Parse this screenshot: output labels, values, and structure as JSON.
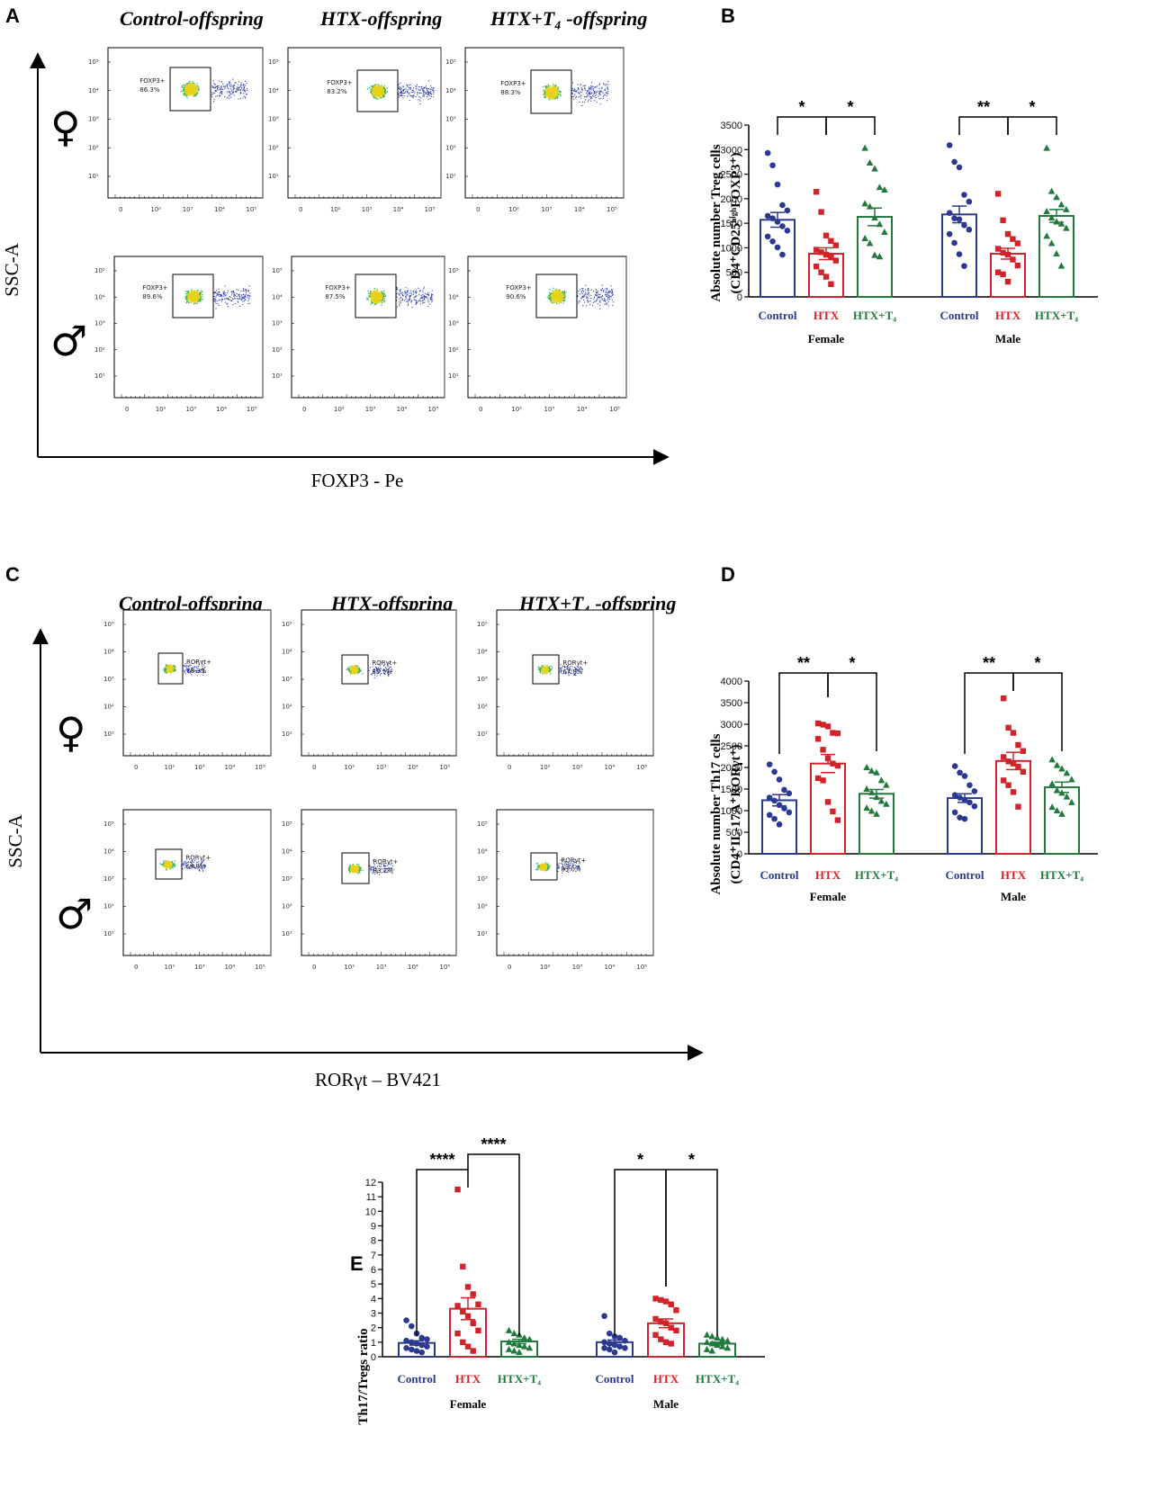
{
  "panels": {
    "A": {
      "label": "A",
      "columns": [
        "Control-offspring",
        "HTX-offspring",
        "HTX+T₄ -offspring"
      ],
      "y_axis": "SSC-A",
      "x_axis": "FOXP3 - Pe",
      "rows": [
        {
          "sex_icon": "female-symbol",
          "symbol": "♀",
          "gates": [
            {
              "name": "FOXP3+",
              "pct": "86.3%"
            },
            {
              "name": "FOXP3+",
              "pct": "83.2%"
            },
            {
              "name": "FOXP3+",
              "pct": "88.3%"
            }
          ]
        },
        {
          "sex_icon": "male-symbol",
          "symbol": "♂",
          "gates": [
            {
              "name": "FOXP3+",
              "pct": "89.6%"
            },
            {
              "name": "FOXP3+",
              "pct": "87.5%"
            },
            {
              "name": "FOXP3+",
              "pct": "90.6%"
            }
          ]
        }
      ]
    },
    "C": {
      "label": "C",
      "columns": [
        "Control-offspring",
        "HTX-offspring",
        "HTX+T₄ -offspring"
      ],
      "y_axis": "SSC-A",
      "x_axis": "RORγt – BV421",
      "rows": [
        {
          "sex_icon": "female-symbol",
          "symbol": "♀",
          "gates": [
            {
              "name": "RORγt+",
              "pct": "78.3%"
            },
            {
              "name": "RORγt+",
              "pct": "83.7%"
            },
            {
              "name": "RORγt+",
              "pct": "67.8%"
            }
          ]
        },
        {
          "sex_icon": "male-symbol",
          "symbol": "♂",
          "gates": [
            {
              "name": "RORγt+",
              "pct": "64.9%"
            },
            {
              "name": "RORγt+",
              "pct": "83.2%"
            },
            {
              "name": "RORγt+",
              "pct": "85.0%"
            }
          ]
        }
      ]
    },
    "flow_ticks": {
      "y": [
        "10⁵",
        "10⁴",
        "10³",
        "10²",
        "10¹"
      ],
      "x": [
        "0",
        "10²",
        "10³",
        "10⁴",
        "10⁵"
      ]
    }
  },
  "chart_data": [
    {
      "id": "B",
      "label": "B",
      "type": "bar",
      "ylabel_line1": "Absolute number Treg cells",
      "ylabel_line2": "(CD4⁺CD25ʰⁱᵍʰFOXP3⁺)",
      "ylim": [
        0,
        3500
      ],
      "yticks": [
        0,
        500,
        1000,
        1500,
        2000,
        2500,
        3000,
        3500
      ],
      "groups": [
        "Female",
        "Male"
      ],
      "categories": [
        "Control",
        "HTX",
        "HTX+T₄"
      ],
      "colors": {
        "Control": "#2b3990",
        "HTX": "#d2232a",
        "HTX+T₄": "#217a3c"
      },
      "series": [
        {
          "name": "Female",
          "means": [
            1570,
            880,
            1630
          ],
          "sems": [
            150,
            120,
            180
          ],
          "points": [
            [
              2930,
              2680,
              2290,
              1870,
              1760,
              1650,
              1600,
              1530,
              1440,
              1350,
              1230,
              1130,
              1010,
              860
            ],
            [
              2140,
              1730,
              1250,
              1140,
              1050,
              960,
              910,
              860,
              820,
              740,
              620,
              500,
              410,
              260
            ],
            [
              3030,
              2730,
              2610,
              2230,
              2180,
              1900,
              1840,
              1610,
              1480,
              1320,
              1190,
              1090,
              850,
              820
            ]
          ]
        },
        {
          "name": "Male",
          "means": [
            1680,
            880,
            1650
          ],
          "sems": [
            170,
            110,
            130
          ],
          "points": [
            [
              3090,
              2750,
              2640,
              2080,
              1940,
              1710,
              1600,
              1580,
              1460,
              1370,
              1280,
              1100,
              870,
              630
            ],
            [
              2100,
              1560,
              1280,
              1180,
              1090,
              980,
              900,
              860,
              760,
              640,
              500,
              460,
              310
            ],
            [
              3030,
              2150,
              2030,
              1880,
              1780,
              1740,
              1610,
              1530,
              1490,
              1400,
              1240,
              1090,
              880,
              630
            ]
          ]
        }
      ],
      "significance": [
        {
          "group": 0,
          "from": 0,
          "to": 1,
          "label": "*"
        },
        {
          "group": 0,
          "from": 1,
          "to": 2,
          "label": "*"
        },
        {
          "group": 1,
          "from": 0,
          "to": 1,
          "label": "**"
        },
        {
          "group": 1,
          "from": 1,
          "to": 2,
          "label": "*"
        }
      ]
    },
    {
      "id": "D",
      "label": "D",
      "type": "bar",
      "ylabel_line1": "Absolute number Th17 cells",
      "ylabel_line2": "(CD4⁺IL-17A⁺RORγt⁺)",
      "ylim": [
        0,
        4000
      ],
      "yticks": [
        0,
        500,
        1000,
        1500,
        2000,
        2500,
        3000,
        3500,
        4000
      ],
      "groups": [
        "Female",
        "Male"
      ],
      "categories": [
        "Control",
        "HTX",
        "HTX+T₄"
      ],
      "colors": {
        "Control": "#2b3990",
        "HTX": "#d2232a",
        "HTX+T₄": "#217a3c"
      },
      "series": [
        {
          "name": "Female",
          "means": [
            1240,
            2090,
            1390
          ],
          "sems": [
            130,
            210,
            100
          ],
          "points": [
            [
              2070,
              1900,
              1720,
              1480,
              1400,
              1300,
              1230,
              1130,
              1050,
              960,
              900,
              810,
              680
            ],
            [
              3020,
              2990,
              2950,
              2800,
              2790,
              2660,
              2410,
              2210,
              2090,
              2040,
              1750,
              1700,
              1200,
              980,
              780
            ],
            [
              2000,
              1920,
              1880,
              1700,
              1590,
              1500,
              1420,
              1310,
              1220,
              1150,
              1060,
              990,
              920
            ]
          ]
        },
        {
          "name": "Male",
          "means": [
            1290,
            2150,
            1540
          ],
          "sems": [
            100,
            200,
            120
          ],
          "points": [
            [
              2030,
              1880,
              1800,
              1590,
              1450,
              1360,
              1300,
              1250,
              1190,
              1100,
              960,
              840,
              810
            ],
            [
              3600,
              2920,
              2800,
              2520,
              2380,
              2240,
              2140,
              2090,
              2020,
              1900,
              1700,
              1590,
              1430,
              1090
            ],
            [
              2180,
              2050,
              1970,
              1870,
              1720,
              1620,
              1470,
              1410,
              1320,
              1190,
              1080,
              1000,
              920
            ]
          ]
        }
      ],
      "significance": [
        {
          "group": 0,
          "from": 0,
          "to": 1,
          "label": "**"
        },
        {
          "group": 0,
          "from": 1,
          "to": 2,
          "label": "*"
        },
        {
          "group": 1,
          "from": 0,
          "to": 1,
          "label": "**"
        },
        {
          "group": 1,
          "from": 1,
          "to": 2,
          "label": "*"
        }
      ]
    },
    {
      "id": "E",
      "label": "E",
      "type": "bar",
      "ylabel_line1": "Th17/Tregs ratio",
      "ylabel_line2": "",
      "ylim": [
        0,
        12
      ],
      "yticks": [
        0,
        1,
        2,
        3,
        4,
        5,
        6,
        7,
        8,
        9,
        10,
        11,
        12
      ],
      "groups": [
        "Female",
        "Male"
      ],
      "categories": [
        "Control",
        "HTX",
        "HTX+T₄"
      ],
      "colors": {
        "Control": "#2b3990",
        "HTX": "#d2232a",
        "HTX+T₄": "#217a3c"
      },
      "series": [
        {
          "name": "Female",
          "means": [
            0.95,
            3.3,
            1.05
          ],
          "sems": [
            0.15,
            0.75,
            0.15
          ],
          "points": [
            [
              2.5,
              2.1,
              1.6,
              1.3,
              1.2,
              1.1,
              1.0,
              0.9,
              0.8,
              0.7,
              0.6,
              0.5,
              0.4,
              0.3
            ],
            [
              11.5,
              6.2,
              4.8,
              4.3,
              3.6,
              3.5,
              3.1,
              2.8,
              2.3,
              1.8,
              1.6,
              1.0,
              0.7,
              0.4
            ],
            [
              1.8,
              1.6,
              1.5,
              1.3,
              1.2,
              1.0,
              0.9,
              0.8,
              0.7,
              0.6,
              0.5,
              0.4,
              0.3
            ]
          ]
        },
        {
          "name": "Male",
          "means": [
            1.0,
            2.3,
            0.9
          ],
          "sems": [
            0.15,
            0.3,
            0.1
          ],
          "points": [
            [
              2.8,
              1.6,
              1.4,
              1.3,
              1.1,
              1.0,
              0.9,
              0.8,
              0.7,
              0.6,
              0.6,
              0.5,
              0.3
            ],
            [
              4.0,
              3.9,
              3.8,
              3.6,
              3.2,
              2.6,
              2.4,
              2.3,
              2.0,
              1.8,
              1.5,
              1.2,
              1.0,
              0.9
            ],
            [
              1.5,
              1.4,
              1.3,
              1.2,
              1.1,
              1.0,
              0.9,
              0.8,
              0.7,
              0.6,
              0.5,
              0.4
            ]
          ]
        }
      ],
      "significance": [
        {
          "group": 0,
          "from": 0,
          "to": 1,
          "label": "****"
        },
        {
          "group": 0,
          "from": 1,
          "to": 2,
          "label": "****"
        },
        {
          "group": 1,
          "from": 0,
          "to": 1,
          "label": "*"
        },
        {
          "group": 1,
          "from": 1,
          "to": 2,
          "label": "*"
        }
      ]
    }
  ]
}
